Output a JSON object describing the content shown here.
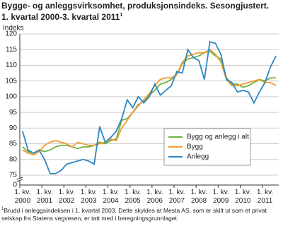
{
  "chart_data": {
    "type": "line",
    "title": "Bygge- og anleggsvirksomhet, produksjonsindeks. Sesongjustert.",
    "subtitle": "1. kvartal 2000-3. kvartal 2011",
    "subtitle_marker": "1",
    "y_label": "Indeks",
    "categories": [
      "1. kv.\n2000",
      null,
      null,
      null,
      "1. kv.\n2001",
      null,
      null,
      null,
      "1. kv.\n2002",
      null,
      null,
      null,
      "1. kv.\n2003",
      null,
      null,
      null,
      "1. kv.\n2004",
      null,
      null,
      null,
      "1. kv.\n2005",
      null,
      null,
      null,
      "1. kv.\n2006",
      null,
      null,
      null,
      "1. kv.\n2007",
      null,
      null,
      null,
      "1. kv.\n2008",
      null,
      null,
      null,
      "1. kv.\n2009",
      null,
      null,
      null,
      "1. kv.\n2010",
      null,
      null,
      null,
      "1. kv.\n2011",
      null,
      null
    ],
    "series": [
      {
        "name": "Bygg og anlegg i alt",
        "color": "#6cb33f",
        "values": [
          84,
          82.5,
          82,
          83,
          82.5,
          83,
          84,
          84.5,
          84.5,
          84,
          83.5,
          84,
          84,
          84.5,
          85.5,
          85,
          86,
          86.5,
          92.5,
          93,
          95,
          97.5,
          98.5,
          100.5,
          102,
          104,
          104.5,
          105.5,
          107,
          110.5,
          112,
          112.5,
          113,
          114,
          114.5,
          113,
          112,
          106,
          104,
          104,
          103,
          103.5,
          104.5,
          105.5,
          105,
          106,
          106
        ]
      },
      {
        "name": "Bygg",
        "color": "#f29a2e",
        "values": [
          83,
          82,
          81.5,
          82.5,
          84.5,
          85.5,
          86,
          85.5,
          85,
          84,
          85.5,
          85,
          84.5,
          84.5,
          85,
          85.5,
          86.5,
          86,
          90,
          92.5,
          95,
          97,
          99,
          101,
          103.5,
          105.5,
          106,
          106,
          107,
          111,
          113,
          113.5,
          114,
          114,
          115,
          113.5,
          111,
          105.5,
          103.5,
          103.5,
          104,
          104.5,
          105,
          105.5,
          104.5,
          104.5,
          103.5
        ]
      },
      {
        "name": "Anlegg",
        "color": "#2e86c1",
        "values": [
          89,
          83,
          82,
          83,
          80,
          75.5,
          75.5,
          76.5,
          78.5,
          79,
          79.5,
          80,
          79.5,
          78.5,
          90.5,
          85.5,
          87,
          89,
          93,
          99,
          96.5,
          100,
          98,
          100,
          104,
          100.5,
          102,
          103.5,
          108,
          107.5,
          115,
          112.5,
          111.5,
          105.5,
          117.5,
          117,
          113.5,
          105.5,
          104.5,
          101.5,
          102,
          101.5,
          98,
          101.5,
          104.5,
          109.5,
          113
        ]
      }
    ],
    "ylim": [
      0,
      120
    ],
    "axis_break": [
      0,
      75
    ],
    "yticks": [
      0,
      75,
      80,
      85,
      90,
      95,
      100,
      105,
      110,
      115,
      120
    ],
    "grid": true,
    "legend": "lower right",
    "footnote_marker": "1",
    "footnote": "Brudd i anleggsindeksen i 1. kvartal 2003. Dette skyldes at Mesta AS, som er skilt ut som et privat selskap fra Statens vegvesen, er tatt med i beregningsgrunnlaget."
  }
}
